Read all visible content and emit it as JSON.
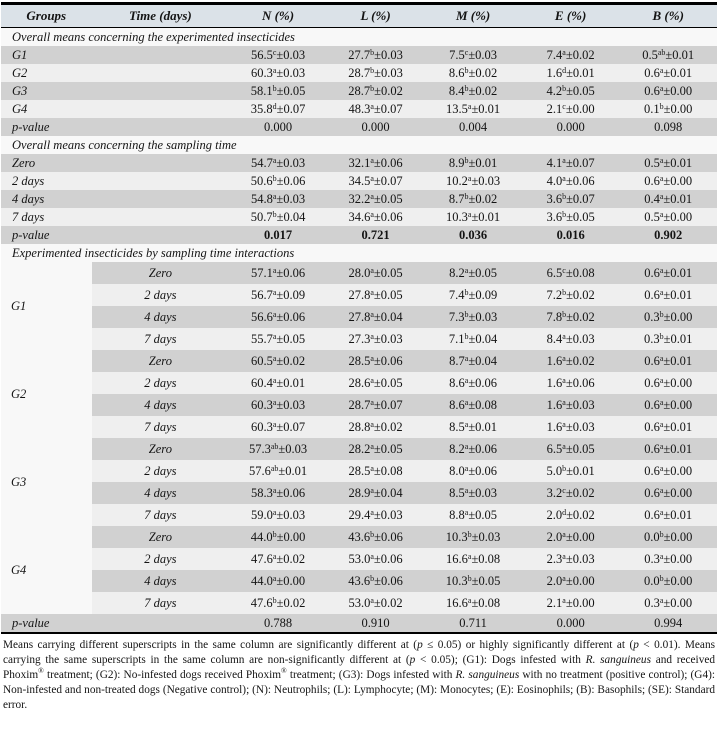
{
  "page": {
    "columns": [
      "Groups",
      "Time (days)",
      "N (%)",
      "L (%)",
      "M (%)",
      "E (%)",
      "B (%)"
    ],
    "sections": [
      {
        "title": "Overall means concerning the experimented insecticides",
        "rows": [
          {
            "label": "G1",
            "cells": [
              [
                "56.5",
                "c",
                "±0.03"
              ],
              [
                "27.7",
                "b",
                "±0.03"
              ],
              [
                "7.5",
                "c",
                "±0.03"
              ],
              [
                "7.4",
                "a",
                "±0.02"
              ],
              [
                "0.5",
                "ab",
                "±0.01"
              ]
            ]
          },
          {
            "label": "G2",
            "cells": [
              [
                "60.3",
                "a",
                "±0.03"
              ],
              [
                "28.7",
                "b",
                "±0.03"
              ],
              [
                "8.6",
                "b",
                "±0.02"
              ],
              [
                "1.6",
                "d",
                "±0.01"
              ],
              [
                "0.6",
                "a",
                "±0.01"
              ]
            ]
          },
          {
            "label": "G3",
            "cells": [
              [
                "58.1",
                "b",
                "±0.05"
              ],
              [
                "28.7",
                "b",
                "±0.02"
              ],
              [
                "8.4",
                "b",
                "±0.02"
              ],
              [
                "4.2",
                "b",
                "±0.05"
              ],
              [
                "0.6",
                "a",
                "±0.00"
              ]
            ]
          },
          {
            "label": "G4",
            "cells": [
              [
                "35.8",
                "d",
                "±0.07"
              ],
              [
                "48.3",
                "a",
                "±0.07"
              ],
              [
                "13.5",
                "a",
                "±0.01"
              ],
              [
                "2.1",
                "c",
                "±0.00"
              ],
              [
                "0.1",
                "b",
                "±0.00"
              ]
            ]
          }
        ],
        "pvalue": {
          "label": "p-value",
          "bold": false,
          "cells": [
            "0.000",
            "0.000",
            "0.004",
            "0.000",
            "0.098"
          ]
        }
      },
      {
        "title": "Overall means concerning the sampling time",
        "rows": [
          {
            "label": "Zero",
            "cells": [
              [
                "54.7",
                "a",
                "±0.03"
              ],
              [
                "32.1",
                "a",
                "±0.06"
              ],
              [
                "8.9",
                "b",
                "±0.01"
              ],
              [
                "4.1",
                "a",
                "±0.07"
              ],
              [
                "0.5",
                "a",
                "±0.01"
              ]
            ]
          },
          {
            "label": "2 days",
            "cells": [
              [
                "50.6",
                "b",
                "±0.06"
              ],
              [
                "34.5",
                "a",
                "±0.07"
              ],
              [
                "10.2",
                "a",
                "±0.03"
              ],
              [
                "4.0",
                "a",
                "±0.06"
              ],
              [
                "0.6",
                "a",
                "±0.00"
              ]
            ]
          },
          {
            "label": "4 days",
            "cells": [
              [
                "54.8",
                "a",
                "±0.03"
              ],
              [
                "32.2",
                "a",
                "±0.05"
              ],
              [
                "8.7",
                "b",
                "±0.02"
              ],
              [
                "3.6",
                "b",
                "±0.07"
              ],
              [
                "0.4",
                "a",
                "±0.01"
              ]
            ]
          },
          {
            "label": "7 days",
            "cells": [
              [
                "50.7",
                "b",
                "±0.04"
              ],
              [
                "34.6",
                "a",
                "±0.06"
              ],
              [
                "10.3",
                "a",
                "±0.01"
              ],
              [
                "3.6",
                "b",
                "±0.05"
              ],
              [
                "0.5",
                "a",
                "±0.00"
              ]
            ]
          }
        ],
        "pvalue": {
          "label": "p-value",
          "bold": true,
          "cells": [
            "0.017",
            "0.721",
            "0.036",
            "0.016",
            "0.902"
          ]
        }
      },
      {
        "title": "Experimented insecticides by sampling time interactions",
        "groups": [
          {
            "label": "G1",
            "rows": [
              {
                "time": "Zero",
                "cells": [
                  [
                    "57.1",
                    "a",
                    "±0.06"
                  ],
                  [
                    "28.0",
                    "a",
                    "±0.05"
                  ],
                  [
                    "8.2",
                    "a",
                    "±0.05"
                  ],
                  [
                    "6.5",
                    "c",
                    "±0.08"
                  ],
                  [
                    "0.6",
                    "a",
                    "±0.01"
                  ]
                ]
              },
              {
                "time": "2 days",
                "cells": [
                  [
                    "56.7",
                    "a",
                    "±0.09"
                  ],
                  [
                    "27.8",
                    "a",
                    "±0.05"
                  ],
                  [
                    "7.4",
                    "b",
                    "±0.09"
                  ],
                  [
                    "7.2",
                    "b",
                    "±0.02"
                  ],
                  [
                    "0.6",
                    "a",
                    "±0.01"
                  ]
                ]
              },
              {
                "time": "4 days",
                "cells": [
                  [
                    "56.6",
                    "a",
                    "±0.06"
                  ],
                  [
                    "27.8",
                    "a",
                    "±0.04"
                  ],
                  [
                    "7.3",
                    "b",
                    "±0.03"
                  ],
                  [
                    "7.8",
                    "b",
                    "±0.02"
                  ],
                  [
                    "0.3",
                    "b",
                    "±0.00"
                  ]
                ]
              },
              {
                "time": "7 days",
                "cells": [
                  [
                    "55.7",
                    "a",
                    "±0.05"
                  ],
                  [
                    "27.3",
                    "a",
                    "±0.03"
                  ],
                  [
                    "7.1",
                    "b",
                    "±0.04"
                  ],
                  [
                    "8.4",
                    "a",
                    "±0.03"
                  ],
                  [
                    "0.3",
                    "b",
                    "±0.01"
                  ]
                ]
              }
            ]
          },
          {
            "label": "G2",
            "rows": [
              {
                "time": "Zero",
                "cells": [
                  [
                    "60.5",
                    "a",
                    "±0.02"
                  ],
                  [
                    "28.5",
                    "a",
                    "±0.06"
                  ],
                  [
                    "8.7",
                    "a",
                    "±0.04"
                  ],
                  [
                    "1.6",
                    "a",
                    "±0.02"
                  ],
                  [
                    "0.6",
                    "a",
                    "±0.01"
                  ]
                ]
              },
              {
                "time": "2 days",
                "cells": [
                  [
                    "60.4",
                    "a",
                    "±0.01"
                  ],
                  [
                    "28.6",
                    "a",
                    "±0.05"
                  ],
                  [
                    "8.6",
                    "a",
                    "±0.06"
                  ],
                  [
                    "1.6",
                    "a",
                    "±0.06"
                  ],
                  [
                    "0.6",
                    "a",
                    "±0.00"
                  ]
                ]
              },
              {
                "time": "4 days",
                "cells": [
                  [
                    "60.3",
                    "a",
                    "±0.03"
                  ],
                  [
                    "28.7",
                    "a",
                    "±0.07"
                  ],
                  [
                    "8.6",
                    "a",
                    "±0.08"
                  ],
                  [
                    "1.6",
                    "a",
                    "±0.03"
                  ],
                  [
                    "0.6",
                    "a",
                    "±0.00"
                  ]
                ]
              },
              {
                "time": "7 days",
                "cells": [
                  [
                    "60.3",
                    "a",
                    "±0.07"
                  ],
                  [
                    "28.8",
                    "a",
                    "±0.02"
                  ],
                  [
                    "8.5",
                    "a",
                    "±0.01"
                  ],
                  [
                    "1.6",
                    "a",
                    "±0.03"
                  ],
                  [
                    "0.6",
                    "a",
                    "±0.01"
                  ]
                ]
              }
            ]
          },
          {
            "label": "G3",
            "rows": [
              {
                "time": "Zero",
                "cells": [
                  [
                    "57.3",
                    "ab",
                    "±0.03"
                  ],
                  [
                    "28.2",
                    "a",
                    "±0.05"
                  ],
                  [
                    "8.2",
                    "a",
                    "±0.06"
                  ],
                  [
                    "6.5",
                    "a",
                    "±0.05"
                  ],
                  [
                    "0.6",
                    "a",
                    "±0.01"
                  ]
                ]
              },
              {
                "time": "2 days",
                "cells": [
                  [
                    "57.6",
                    "ab",
                    "±0.01"
                  ],
                  [
                    "28.5",
                    "a",
                    "±0.08"
                  ],
                  [
                    "8.0",
                    "a",
                    "±0.06"
                  ],
                  [
                    "5.0",
                    "b",
                    "±0.01"
                  ],
                  [
                    "0.6",
                    "a",
                    "±0.00"
                  ]
                ]
              },
              {
                "time": "4 days",
                "cells": [
                  [
                    "58.3",
                    "a",
                    "±0.06"
                  ],
                  [
                    "28.9",
                    "a",
                    "±0.04"
                  ],
                  [
                    "8.5",
                    "a",
                    "±0.03"
                  ],
                  [
                    "3.2",
                    "c",
                    "±0.02"
                  ],
                  [
                    "0.6",
                    "a",
                    "±0.00"
                  ]
                ]
              },
              {
                "time": "7 days",
                "cells": [
                  [
                    "59.0",
                    "a",
                    "±0.03"
                  ],
                  [
                    "29.4",
                    "a",
                    "±0.03"
                  ],
                  [
                    "8.8",
                    "a",
                    "±0.05"
                  ],
                  [
                    "2.0",
                    "d",
                    "±0.02"
                  ],
                  [
                    "0.6",
                    "a",
                    "±0.01"
                  ]
                ]
              }
            ]
          },
          {
            "label": "G4",
            "rows": [
              {
                "time": "Zero",
                "cells": [
                  [
                    "44.0",
                    "b",
                    "±0.00"
                  ],
                  [
                    "43.6",
                    "b",
                    "±0.06"
                  ],
                  [
                    "10.3",
                    "b",
                    "±0.03"
                  ],
                  [
                    "2.0",
                    "a",
                    "±0.00"
                  ],
                  [
                    "0.0",
                    "b",
                    "±0.00"
                  ]
                ]
              },
              {
                "time": "2 days",
                "cells": [
                  [
                    "47.6",
                    "a",
                    "±0.02"
                  ],
                  [
                    "53.0",
                    "a",
                    "±0.06"
                  ],
                  [
                    "16.6",
                    "a",
                    "±0.08"
                  ],
                  [
                    "2.3",
                    "a",
                    "±0.03"
                  ],
                  [
                    "0.3",
                    "a",
                    "±0.00"
                  ]
                ]
              },
              {
                "time": "4 days",
                "cells": [
                  [
                    "44.0",
                    "a",
                    "±0.00"
                  ],
                  [
                    "43.6",
                    "b",
                    "±0.06"
                  ],
                  [
                    "10.3",
                    "b",
                    "±0.05"
                  ],
                  [
                    "2.0",
                    "a",
                    "±0.00"
                  ],
                  [
                    "0.0",
                    "b",
                    "±0.00"
                  ]
                ]
              },
              {
                "time": "7 days",
                "cells": [
                  [
                    "47.6",
                    "b",
                    "±0.02"
                  ],
                  [
                    "53.0",
                    "a",
                    "±0.02"
                  ],
                  [
                    "16.6",
                    "a",
                    "±0.08"
                  ],
                  [
                    "2.1",
                    "a",
                    "±0.00"
                  ],
                  [
                    "0.3",
                    "a",
                    "±0.00"
                  ]
                ]
              }
            ]
          }
        ],
        "pvalue": {
          "label": "p-value",
          "bold": false,
          "cells": [
            "0.788",
            "0.910",
            "0.711",
            "0.000",
            "0.994"
          ]
        }
      }
    ],
    "footnote_segments": [
      {
        "t": "Means carrying different superscripts in the same column are significantly different at ("
      },
      {
        "t": "p",
        "i": true
      },
      {
        "t": " ≤ 0.05) or highly significantly different at ("
      },
      {
        "t": "p",
        "i": true
      },
      {
        "t": " < 0.01). Means carrying the same superscripts in the same column are non-significantly different at ("
      },
      {
        "t": "p",
        "i": true
      },
      {
        "t": " < 0.05); (G1): Dogs infested with "
      },
      {
        "t": "R. sanguineus",
        "i": true
      },
      {
        "t": " and received Phoxim"
      },
      {
        "t": "®",
        "sup": true
      },
      {
        "t": " treatment; (G2): No-infested dogs received Phoxim"
      },
      {
        "t": "®",
        "sup": true
      },
      {
        "t": " treatment; (G3): Dogs infested with "
      },
      {
        "t": "R. sanguineus",
        "i": true
      },
      {
        "t": " with no treatment (positive control); (G4): Non-infested and non-treated dogs (Negative control); (N): Neutrophils; (L): Lymphocyte; (M): Monocytes; (E): Eosinophils; (B): Basophils; (SE): Standard error."
      }
    ],
    "colors": {
      "header_bg": "#dbe2e8",
      "stripe_dark": "#d1d1d1",
      "stripe_light": "#efefef",
      "section_bg": "#f8f8f8",
      "border": "#000000"
    }
  }
}
